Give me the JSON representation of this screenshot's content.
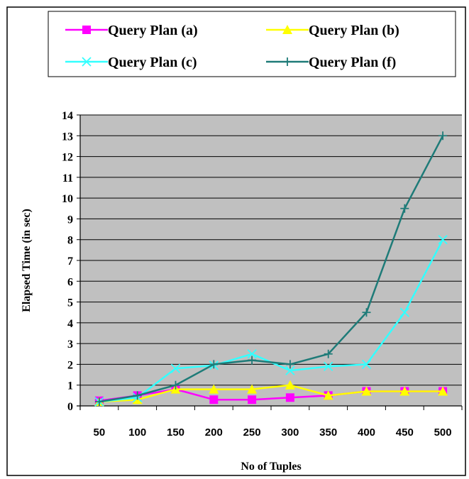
{
  "chart_data": {
    "type": "line",
    "title": "",
    "xlabel": "No of Tuples",
    "ylabel": "Elapsed Time (in sec)",
    "categories": [
      "50",
      "100",
      "150",
      "200",
      "250",
      "300",
      "350",
      "400",
      "450",
      "500"
    ],
    "ylim": [
      0,
      14
    ],
    "yticks": [
      "0",
      "1",
      "2",
      "3",
      "4",
      "5",
      "6",
      "7",
      "8",
      "9",
      "10",
      "11",
      "12",
      "13",
      "14"
    ],
    "grid": true,
    "plot_background": "#c0c0c0",
    "legend_position": "top",
    "series": [
      {
        "name": "Query Plan (a)",
        "color": "#ff00ff",
        "marker": "square",
        "values": [
          0.25,
          0.5,
          0.8,
          0.3,
          0.3,
          0.4,
          0.5,
          0.7,
          0.7,
          0.7
        ]
      },
      {
        "name": "Query Plan (b)",
        "color": "#ffff00",
        "marker": "triangle",
        "values": [
          0.2,
          0.3,
          0.8,
          0.8,
          0.8,
          1.0,
          0.5,
          0.7,
          0.7,
          0.7
        ]
      },
      {
        "name": "Query Plan (c)",
        "color": "#33ffff",
        "marker": "x",
        "values": [
          0.2,
          0.4,
          1.8,
          1.95,
          2.5,
          1.7,
          1.9,
          2.0,
          4.5,
          8.0
        ]
      },
      {
        "name": "Query Plan (f)",
        "color": "#1e7b78",
        "marker": "plus",
        "values": [
          0.2,
          0.5,
          1.0,
          2.0,
          2.2,
          2.0,
          2.5,
          4.5,
          9.5,
          13.0
        ]
      }
    ]
  }
}
